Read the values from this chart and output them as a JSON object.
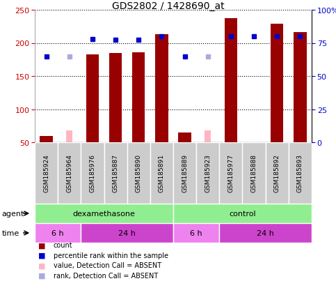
{
  "title": "GDS2802 / 1428690_at",
  "samples": [
    "GSM185924",
    "GSM185964",
    "GSM185976",
    "GSM185887",
    "GSM185890",
    "GSM185891",
    "GSM185889",
    "GSM185923",
    "GSM185977",
    "GSM185888",
    "GSM185892",
    "GSM185893"
  ],
  "count_values": [
    60,
    null,
    183,
    185,
    186,
    213,
    65,
    null,
    237,
    null,
    229,
    216
  ],
  "count_absent": [
    null,
    68,
    null,
    null,
    null,
    null,
    null,
    68,
    null,
    null,
    null,
    null
  ],
  "rank_values": [
    179,
    null,
    206,
    205,
    205,
    210,
    179,
    null,
    210,
    210,
    210,
    210
  ],
  "rank_absent": [
    null,
    179,
    null,
    null,
    null,
    null,
    null,
    179,
    null,
    null,
    null,
    null
  ],
  "agent_groups": [
    {
      "label": "dexamethasone",
      "start": 0,
      "end": 6,
      "color": "#90ee90"
    },
    {
      "label": "control",
      "start": 6,
      "end": 12,
      "color": "#90ee90"
    }
  ],
  "time_groups": [
    {
      "label": "6 h",
      "start": 0,
      "end": 2,
      "color": "#ee82ee"
    },
    {
      "label": "24 h",
      "start": 2,
      "end": 6,
      "color": "#cc44cc"
    },
    {
      "label": "6 h",
      "start": 6,
      "end": 8,
      "color": "#ee82ee"
    },
    {
      "label": "24 h",
      "start": 8,
      "end": 12,
      "color": "#cc44cc"
    }
  ],
  "ylim_left": [
    50,
    250
  ],
  "ylim_right": [
    0,
    100
  ],
  "left_ticks": [
    50,
    100,
    150,
    200,
    250
  ],
  "right_ticks": [
    0,
    25,
    50,
    75,
    100
  ],
  "right_tick_labels": [
    "0",
    "25",
    "50",
    "75",
    "100%"
  ],
  "bar_color": "#990000",
  "absent_bar_color": "#ffb6c1",
  "rank_color": "#0000cc",
  "rank_absent_color": "#aaaadd",
  "grid_color": "#000000",
  "bg_color": "#ffffff",
  "label_bg_color": "#cccccc",
  "axis_color_left": "#cc0000",
  "axis_color_right": "#0000cc",
  "agent_color": "#90ee90",
  "time_color_light": "#ee82ee",
  "time_color_dark": "#cc44cc"
}
